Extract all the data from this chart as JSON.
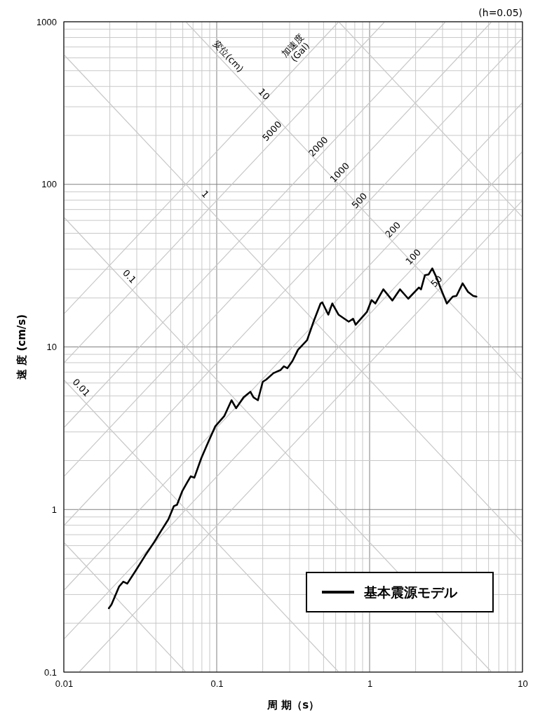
{
  "chart_data": {
    "type": "line",
    "xlabel": "周 期（s）",
    "ylabel": "速 度 (cm/s)",
    "log": "xy",
    "grid": true,
    "legend": "bottom right",
    "xlim": [
      0.01,
      10
    ],
    "xticks": [
      0.01,
      0.1,
      1,
      10
    ],
    "ylim": [
      0.1,
      1000
    ],
    "yticks": [
      0.1,
      1,
      10,
      100,
      1000
    ],
    "annotations": [
      "(h=0.05)",
      {
        "text": "変位(cm)",
        "x": 0.11,
        "y": 571
      },
      {
        "text": "加速度\n(Gal)",
        "x": 0.38,
        "y": 605
      },
      {
        "text": "10",
        "x": 0.188,
        "y": 334
      },
      {
        "text": "1",
        "x": 0.0776,
        "y": 81.0
      },
      {
        "text": "0.1",
        "x": 0.0248,
        "y": 25.3
      },
      {
        "text": "0.01",
        "x": 0.012,
        "y": 5.24
      },
      {
        "text": "5000",
        "x": 0.249,
        "y": 198
      },
      {
        "text": "2000",
        "x": 0.5,
        "y": 159
      },
      {
        "text": "1000",
        "x": 0.69,
        "y": 110
      },
      {
        "text": "500",
        "x": 0.93,
        "y": 74.0
      },
      {
        "text": "200",
        "x": 1.54,
        "y": 49.0
      },
      {
        "text": "100",
        "x": 2.09,
        "y": 33.3
      },
      {
        "text": "50",
        "x": 2.97,
        "y": 23.6
      }
    ],
    "series": [
      {
        "color": "#c8c8c8",
        "x": [
          0.6283,
          10
        ],
        "values": [
          1000,
          62.83
        ]
      },
      {
        "color": "#c8c8c8",
        "x": [
          0.06283,
          10
        ],
        "values": [
          1000,
          6.283
        ]
      },
      {
        "color": "#c8c8c8",
        "x": [
          0.01,
          10
        ],
        "values": [
          628.3,
          0.6283
        ]
      },
      {
        "color": "#c8c8c8",
        "x": [
          0.01,
          6.283
        ],
        "values": [
          62.83,
          0.1
        ]
      },
      {
        "color": "#c8c8c8",
        "x": [
          0.01,
          0.6283
        ],
        "values": [
          6.283,
          0.1
        ]
      },
      {
        "color": "#c8c8c8",
        "x": [
          0.01,
          0.06283
        ],
        "values": [
          0.6283,
          0.1
        ]
      },
      {
        "color": "#c8c8c8",
        "x": [
          0.01,
          0.6283
        ],
        "values": [
          15.92,
          1000
        ]
      },
      {
        "color": "#c8c8c8",
        "x": [
          0.01,
          1.2566
        ],
        "values": [
          7.958,
          1000
        ]
      },
      {
        "color": "#c8c8c8",
        "x": [
          0.01,
          3.1416
        ],
        "values": [
          3.183,
          1000
        ]
      },
      {
        "color": "#c8c8c8",
        "x": [
          0.01,
          6.283
        ],
        "values": [
          1.592,
          1000
        ]
      },
      {
        "color": "#c8c8c8",
        "x": [
          0.01,
          10
        ],
        "values": [
          0.7958,
          795.8
        ]
      },
      {
        "color": "#c8c8c8",
        "x": [
          0.01,
          10
        ],
        "values": [
          0.3183,
          318.3
        ]
      },
      {
        "color": "#c8c8c8",
        "x": [
          0.01,
          10
        ],
        "values": [
          0.1592,
          159.2
        ]
      },
      {
        "color": "#c8c8c8",
        "x": [
          0.01257,
          10
        ],
        "values": [
          0.1,
          79.58
        ]
      },
      {
        "name": "基本震源モデル",
        "color": "#000000",
        "line_style": "solid",
        "x": [
          0.0197,
          0.0205,
          0.023,
          0.0245,
          0.026,
          0.0294,
          0.034,
          0.039,
          0.0433,
          0.0483,
          0.0525,
          0.055,
          0.0596,
          0.0642,
          0.0677,
          0.0714,
          0.0793,
          0.0881,
          0.0979,
          0.112,
          0.125,
          0.134,
          0.15,
          0.166,
          0.174,
          0.186,
          0.2,
          0.211,
          0.235,
          0.261,
          0.275,
          0.29,
          0.313,
          0.34,
          0.39,
          0.43,
          0.478,
          0.49,
          0.537,
          0.57,
          0.626,
          0.73,
          0.78,
          0.81,
          0.96,
          1.03,
          1.09,
          1.23,
          1.41,
          1.58,
          1.79,
          2.1,
          2.17,
          2.3,
          2.43,
          2.57,
          2.75,
          2.9,
          3.2,
          3.5,
          3.7,
          4.06,
          4.4,
          4.76,
          5.0
        ],
        "values": [
          0.247,
          0.26,
          0.336,
          0.36,
          0.35,
          0.418,
          0.52,
          0.63,
          0.74,
          0.87,
          1.05,
          1.07,
          1.3,
          1.47,
          1.6,
          1.57,
          2.07,
          2.6,
          3.25,
          3.75,
          4.7,
          4.2,
          4.9,
          5.3,
          4.9,
          4.7,
          6.1,
          6.3,
          6.9,
          7.2,
          7.6,
          7.4,
          8.2,
          9.6,
          11,
          14.3,
          18.5,
          18.8,
          15.8,
          18.5,
          15.8,
          14.3,
          14.9,
          13.7,
          16.4,
          19.4,
          18.5,
          22.6,
          19.3,
          22.6,
          19.8,
          23.2,
          22.6,
          27.6,
          27.9,
          30.4,
          26.5,
          23.2,
          18.5,
          20.4,
          20.6,
          24.6,
          21.8,
          20.6,
          20.4
        ]
      }
    ]
  }
}
